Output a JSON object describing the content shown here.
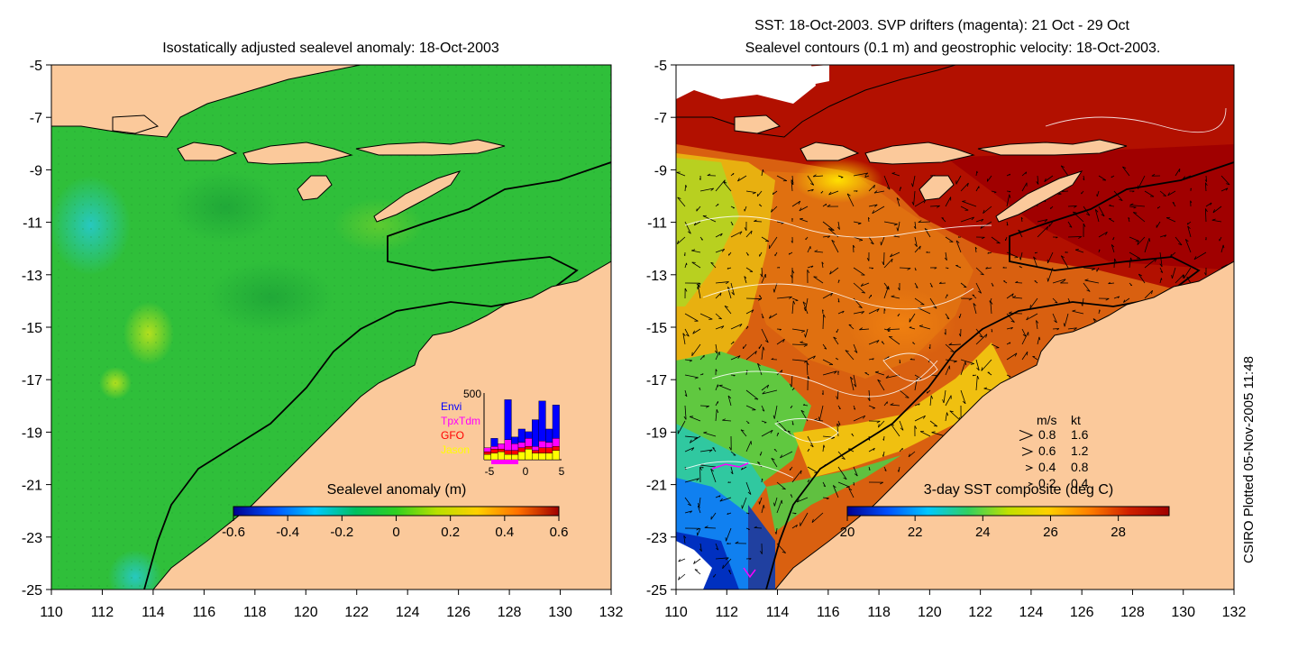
{
  "left_panel": {
    "title": "Isostatically adjusted sealevel anomaly: 18-Oct-2003",
    "colorbar_label": "Sealevel anomaly (m)",
    "colorbar_ticks": [
      "-0.6",
      "-0.4",
      "-0.2",
      "0",
      "0.2",
      "0.4",
      "0.6"
    ],
    "colorbar_colors": [
      "#00008f",
      "#0050ff",
      "#00c8ff",
      "#00c060",
      "#30d020",
      "#b8e000",
      "#ffd000",
      "#ff7000",
      "#a00000"
    ],
    "inset": {
      "ymax_label": "500",
      "legend": [
        {
          "name": "Envi",
          "color": "#0000ff"
        },
        {
          "name": "TpxTdm",
          "color": "#ff00ff"
        },
        {
          "name": "GFO",
          "color": "#ff0000"
        },
        {
          "name": "Jason",
          "color": "#ffff00"
        }
      ],
      "x_ticks": [
        "-5",
        "0",
        "5"
      ],
      "bars": [
        {
          "envi": 0,
          "tpx": 30,
          "gfo": 20,
          "jason": 40
        },
        {
          "envi": 60,
          "tpx": 20,
          "gfo": 30,
          "jason": 50
        },
        {
          "envi": 0,
          "tpx": 40,
          "gfo": 20,
          "jason": 60
        },
        {
          "envi": 300,
          "tpx": 80,
          "gfo": 30,
          "jason": 40
        },
        {
          "envi": 50,
          "tpx": 50,
          "gfo": 30,
          "jason": 40
        },
        {
          "envi": 100,
          "tpx": 40,
          "gfo": 30,
          "jason": 60
        },
        {
          "envi": 50,
          "tpx": 60,
          "gfo": 20,
          "jason": 80
        },
        {
          "envi": 200,
          "tpx": 30,
          "gfo": 20,
          "jason": 50
        },
        {
          "envi": 300,
          "tpx": 50,
          "gfo": 40,
          "jason": 50
        },
        {
          "envi": 100,
          "tpx": 40,
          "gfo": 40,
          "jason": 50
        },
        {
          "envi": 250,
          "tpx": 60,
          "gfo": 30,
          "jason": 70
        }
      ]
    }
  },
  "right_panel": {
    "title_line1": "SST: 18-Oct-2003. SVP drifters (magenta): 21 Oct - 29 Oct",
    "title_line2": "Sealevel contours (0.1 m) and geostrophic velocity: 18-Oct-2003.",
    "colorbar_label": "3-day SST composite (deg C)",
    "colorbar_ticks": [
      "20",
      "22",
      "24",
      "26",
      "28"
    ],
    "colorbar_colors": [
      "#00008f",
      "#0050ff",
      "#00c8ff",
      "#30d060",
      "#c0e000",
      "#ffd000",
      "#ff8000",
      "#d02000",
      "#a00000"
    ],
    "velocity_key": {
      "header_ms": "m/s",
      "header_kt": "kt",
      "rows": [
        {
          "ms": "0.8",
          "kt": "1.6"
        },
        {
          "ms": "0.6",
          "kt": "1.2"
        },
        {
          "ms": "0.4",
          "kt": "0.8"
        },
        {
          "ms": "0.2",
          "kt": "0.4"
        }
      ]
    }
  },
  "axes": {
    "x_ticks": [
      "110",
      "112",
      "114",
      "116",
      "118",
      "120",
      "122",
      "124",
      "126",
      "128",
      "130",
      "132"
    ],
    "y_ticks": [
      "-5",
      "-7",
      "-9",
      "-11",
      "-13",
      "-15",
      "-17",
      "-19",
      "-21",
      "-23",
      "-25"
    ],
    "xlim": [
      110,
      132
    ],
    "ylim": [
      -25,
      -5
    ]
  },
  "credit": "CSIRO Plotted 05-Nov-2005 11:48",
  "colors": {
    "land": "#fbc99b",
    "ocean_green": "#2fbf3a"
  },
  "chart_data": [
    {
      "type": "heatmap",
      "title": "Isostatically adjusted sealevel anomaly: 18-Oct-2003",
      "xlabel": "",
      "ylabel": "",
      "xlim": [
        110,
        132
      ],
      "ylim": [
        -25,
        -5
      ],
      "colorbar": {
        "label": "Sealevel anomaly (m)",
        "range": [
          -0.6,
          0.6
        ]
      },
      "dominant_value": 0.0,
      "features": [
        {
          "description": "positive anomaly patch",
          "lon": 113.8,
          "lat": -15.2,
          "value": 0.1
        },
        {
          "description": "negative anomaly patch",
          "lon": 111.5,
          "lat": -11.0,
          "value": -0.2
        }
      ]
    },
    {
      "type": "heatmap",
      "title": "SST: 18-Oct-2003. SVP drifters (magenta): 21 Oct - 29 Oct",
      "xlabel": "",
      "ylabel": "",
      "xlim": [
        110,
        132
      ],
      "ylim": [
        -25,
        -5
      ],
      "colorbar": {
        "label": "3-day SST composite (deg C)",
        "range": [
          20,
          29.5
        ]
      },
      "regions": [
        {
          "description": "north (Banda/Timor seas)",
          "sst": 29
        },
        {
          "description": "central shelf",
          "sst": 27
        },
        {
          "description": "west central",
          "sst": 25
        },
        {
          "description": "southwest",
          "sst": 22
        }
      ]
    }
  ]
}
